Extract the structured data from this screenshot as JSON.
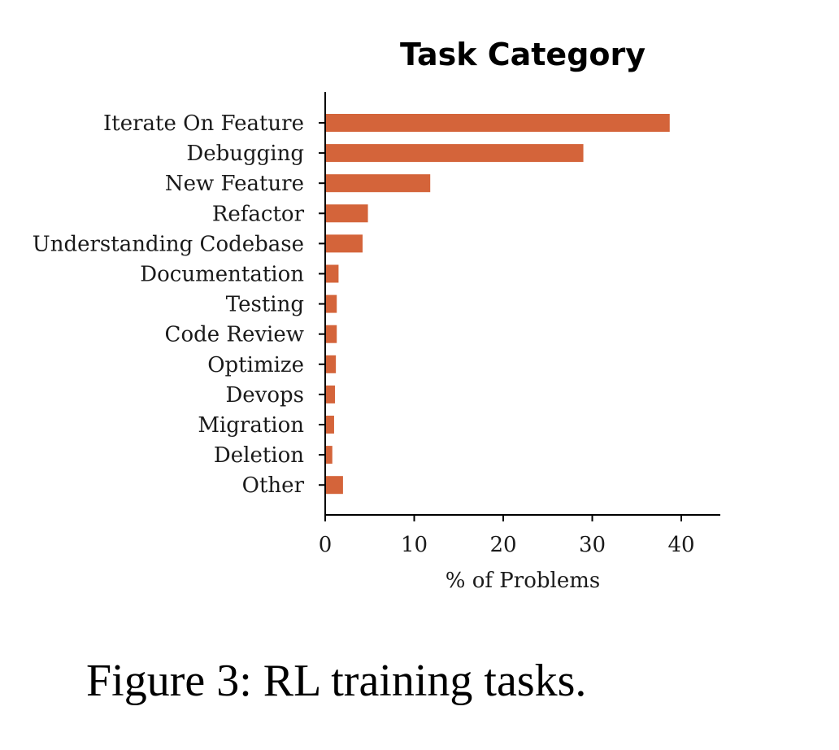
{
  "chart_data": {
    "type": "bar",
    "orientation": "horizontal",
    "title": "Task Category",
    "xlabel": "% of Problems",
    "ylabel": "",
    "xlim": [
      0,
      45
    ],
    "xticks": [
      0,
      10,
      20,
      30,
      40
    ],
    "grid": false,
    "legend": "none",
    "bar_color": "#d4643a",
    "categories": [
      "Iterate On Feature",
      "Debugging",
      "New Feature",
      "Refactor",
      "Understanding Codebase",
      "Documentation",
      "Testing",
      "Code Review",
      "Optimize",
      "Devops",
      "Migration",
      "Deletion",
      "Other"
    ],
    "values": [
      38.7,
      29.0,
      11.8,
      4.8,
      4.2,
      1.5,
      1.3,
      1.3,
      1.2,
      1.1,
      1.0,
      0.8,
      2.0
    ]
  },
  "caption": "Figure 3: RL training tasks."
}
